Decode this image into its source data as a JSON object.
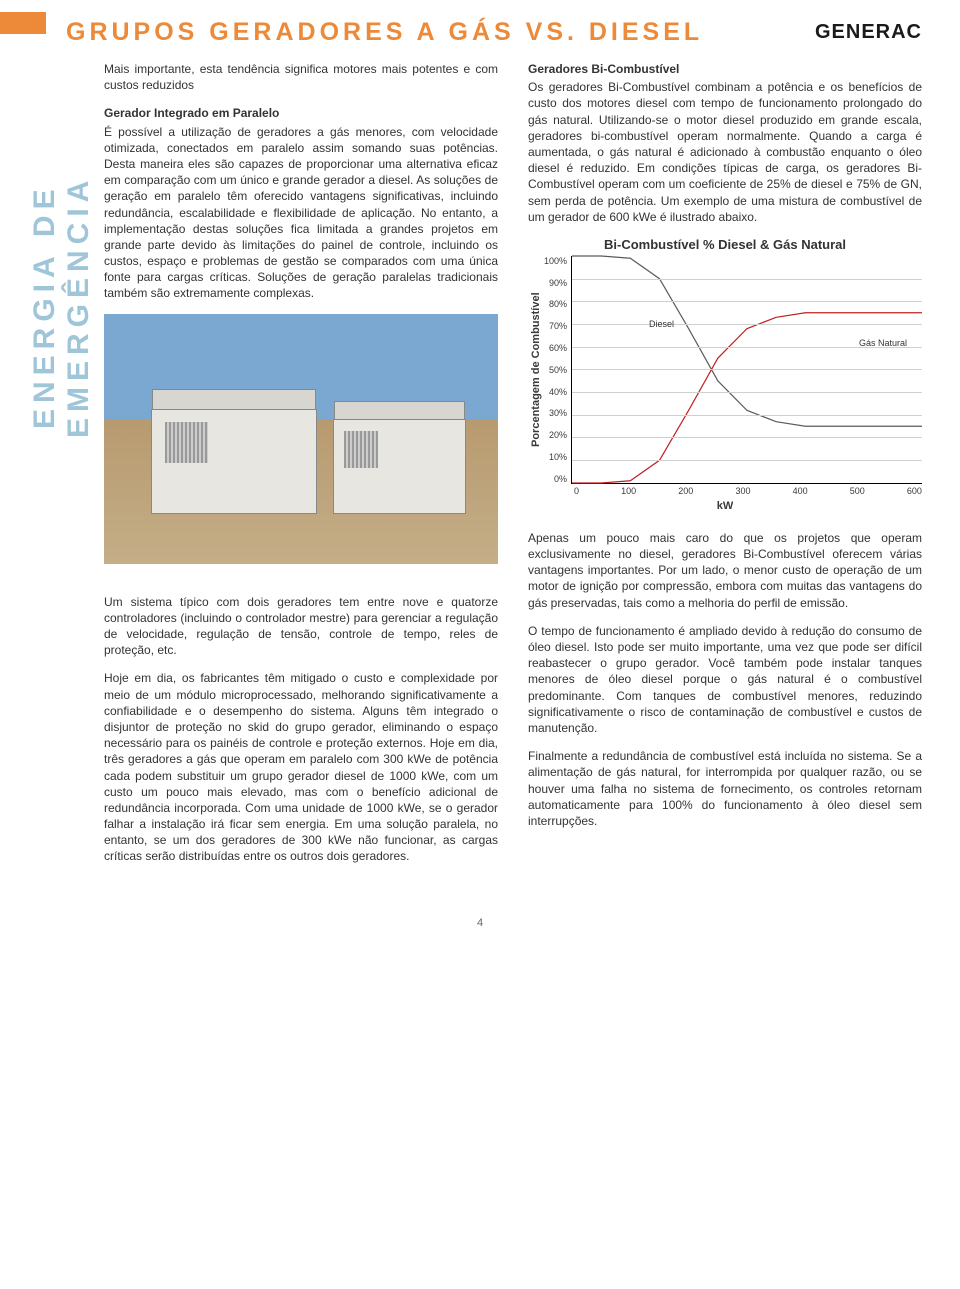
{
  "header": {
    "title": "GRUPOS GERADORES A GÁS VS. DIESEL",
    "logo": "GENERAC"
  },
  "vertical_label": "ENERGIA DE EMERGÊNCIA",
  "left_col": {
    "intro": "Mais importante, esta tendência significa motores mais potentes e com custos reduzidos",
    "sub1": "Gerador Integrado em Paralelo",
    "p1": "É possível a utilização de geradores a gás menores, com velocidade otimizada, conectados em paralelo assim somando suas potências. Desta maneira eles são capazes de proporcionar uma alternativa eficaz em comparação com um único e grande gerador a diesel. As soluções de geração em paralelo têm oferecido vantagens significativas, incluindo redundância, escalabilidade e flexibilidade de aplicação. No entanto, a implementação destas soluções fica limitada a grandes projetos em grande parte devido às limitações do painel de controle, incluindo os custos, espaço e problemas de gestão se comparados com uma única fonte para cargas críticas. Soluções de geração paralelas tradicionais também são extremamente complexas.",
    "p2": "Um sistema típico com dois geradores tem entre nove e quatorze controladores (incluindo o controlador mestre) para gerenciar a regulação de velocidade, regulação de tensão, controle de tempo, reles de proteção, etc.",
    "p3": "Hoje em dia, os fabricantes têm mitigado o custo e complexidade por meio de um módulo microprocessado, melhorando significativamente a confiabilidade e o desempenho do sistema. Alguns têm integrado o disjuntor de proteção no skid do grupo gerador, eliminando o espaço necessário para os painéis de controle e proteção externos. Hoje em dia, três geradores a gás que operam em paralelo com 300 kWe de potência cada podem substituir um grupo gerador diesel de 1000 kWe, com um custo um pouco mais elevado, mas com o benefício adicional de redundância incorporada. Com uma unidade de 1000 kWe, se o gerador falhar a instalação irá ficar sem energia. Em uma solução paralela, no entanto, se um dos geradores de 300 kWe não funcionar, as cargas críticas serão distribuídas entre os outros dois geradores."
  },
  "right_col": {
    "sub1": "Geradores Bi-Combustível",
    "p1": "Os geradores Bi-Combustível combinam a potência e os benefícios de custo dos motores diesel com tempo de funcionamento prolongado do gás natural. Utilizando-se o motor diesel produzido em grande escala, geradores bi-combustível operam normalmente. Quando a carga é aumentada, o gás natural é adicionado à combustão enquanto o óleo diesel é reduzido. Em condições típicas de carga, os geradores Bi-Combustível operam com um coeficiente de 25% de diesel e 75% de GN, sem perda de potência. Um exemplo de uma mistura de combustível de um gerador de 600 kWe é ilustrado abaixo.",
    "p2": "Apenas um pouco mais caro do que os projetos que operam exclusivamente no diesel, geradores Bi-Combustível oferecem várias vantagens importantes. Por um lado, o menor custo de operação de um motor de ignição por compressão, embora com muitas das vantagens do gás preservadas, tais como a melhoria do perfil de emissão.",
    "p3": "O tempo de funcionamento é ampliado devido à redução do consumo de óleo diesel. Isto pode ser muito importante, uma vez que pode ser difícil reabastecer o grupo gerador. Você também pode instalar tanques menores de óleo diesel porque o gás natural é o combustível predominante. Com tanques de combustível menores, reduzindo significativamente o risco de contaminação de combustível e custos de manutenção.",
    "p4": "Finalmente a redundância de combustível está incluída no sistema. Se a alimentação de gás natural, for interrompida por qualquer razão, ou se houver uma falha no sistema de fornecimento, os controles retornam automaticamente para 100% do funcionamento à óleo diesel sem interrupções."
  },
  "chart": {
    "type": "line",
    "title": "Bi-Combustível % Diesel & Gás Natural",
    "ylabel": "Porcentagem de Combustível",
    "xlabel": "kW",
    "xlim": [
      0,
      600
    ],
    "ylim": [
      0,
      100
    ],
    "ytick_labels": [
      "100%",
      "90%",
      "80%",
      "70%",
      "60%",
      "50%",
      "40%",
      "30%",
      "20%",
      "10%",
      "0%"
    ],
    "xtick_labels": [
      "0",
      "100",
      "200",
      "300",
      "400",
      "500",
      "600"
    ],
    "grid_color": "#d0d0d0",
    "series": [
      {
        "name": "Diesel",
        "color": "#5b5b5b",
        "label_pos": {
          "x_pct": 22,
          "y_pct": 28
        },
        "points": [
          [
            0,
            100
          ],
          [
            50,
            100
          ],
          [
            100,
            99
          ],
          [
            150,
            90
          ],
          [
            200,
            68
          ],
          [
            250,
            45
          ],
          [
            300,
            32
          ],
          [
            350,
            27
          ],
          [
            400,
            25
          ],
          [
            450,
            25
          ],
          [
            500,
            25
          ],
          [
            550,
            25
          ],
          [
            600,
            25
          ]
        ]
      },
      {
        "name": "Gás Natural",
        "color": "#c02020",
        "label_pos": {
          "x_pct": 82,
          "y_pct": 36
        },
        "points": [
          [
            0,
            0
          ],
          [
            50,
            0
          ],
          [
            100,
            1
          ],
          [
            150,
            10
          ],
          [
            200,
            32
          ],
          [
            250,
            55
          ],
          [
            300,
            68
          ],
          [
            350,
            73
          ],
          [
            400,
            75
          ],
          [
            450,
            75
          ],
          [
            500,
            75
          ],
          [
            550,
            75
          ],
          [
            600,
            75
          ]
        ]
      }
    ]
  },
  "page_number": "4"
}
